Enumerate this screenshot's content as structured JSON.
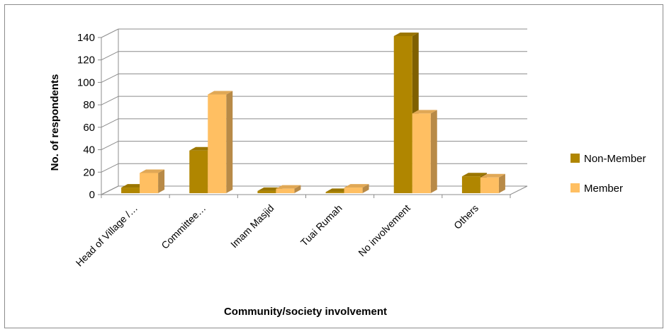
{
  "chart_data": {
    "type": "bar",
    "categories": [
      "Head of Village /…",
      "Committee…",
      "Imam Masjid",
      "Tuai Rumah",
      "No involvement",
      "Others"
    ],
    "series": [
      {
        "name": "Non-Member",
        "values": [
          5,
          38,
          2,
          1,
          140,
          15
        ],
        "color": "#B08600"
      },
      {
        "name": "Member",
        "values": [
          18,
          88,
          4,
          5,
          71,
          14
        ],
        "color": "#FFBF62"
      }
    ],
    "title": "",
    "xlabel": "Community/society involvement",
    "ylabel": "No. of respondents",
    "ylim": [
      0,
      140
    ],
    "yticks": [
      0,
      20,
      40,
      60,
      80,
      100,
      120,
      140
    ],
    "grid": true,
    "legend_position": "right",
    "style": "3d-clustered-column"
  }
}
